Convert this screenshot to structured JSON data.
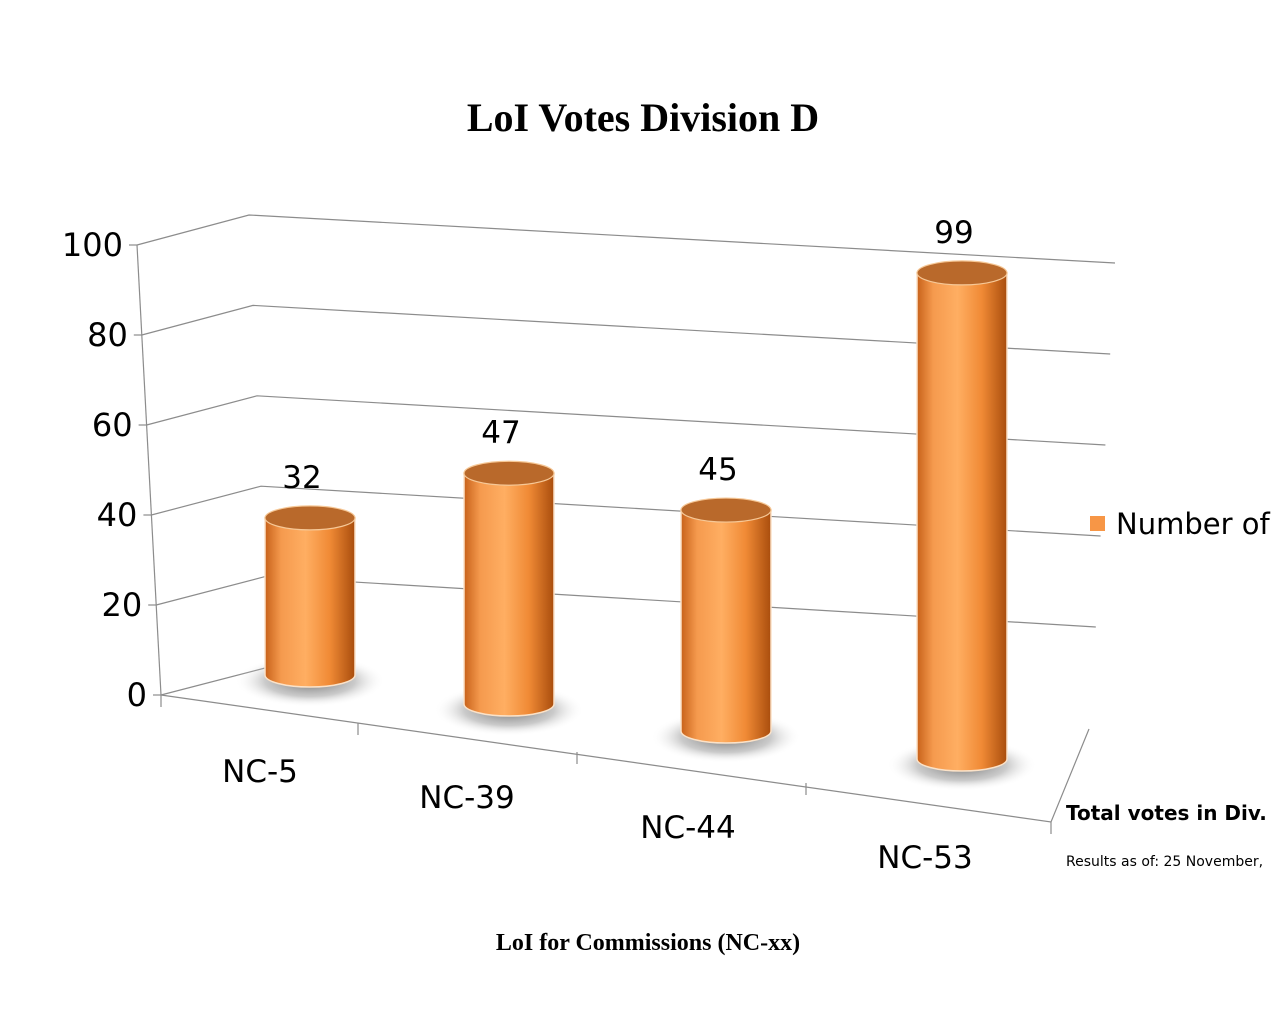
{
  "chart_data": {
    "type": "bar",
    "title": "LoI Votes Division D",
    "xlabel": "LoI for Commissions (NC-xx)",
    "ylabel": "",
    "categories": [
      "NC-5",
      "NC-39",
      "NC-44",
      "NC-53"
    ],
    "series": [
      {
        "name": "Number of",
        "values": [
          32,
          47,
          45,
          99
        ],
        "color": "#f79646"
      }
    ],
    "yticks": [
      "0",
      "20",
      "40",
      "60",
      "80",
      "100"
    ],
    "ylim": [
      0,
      100
    ],
    "grid": true,
    "legend": "right",
    "shape": "cylinder-3d"
  },
  "notes": {
    "total_votes": "Total votes in Div.",
    "results_as_of": "Results as of: 25 November,"
  }
}
